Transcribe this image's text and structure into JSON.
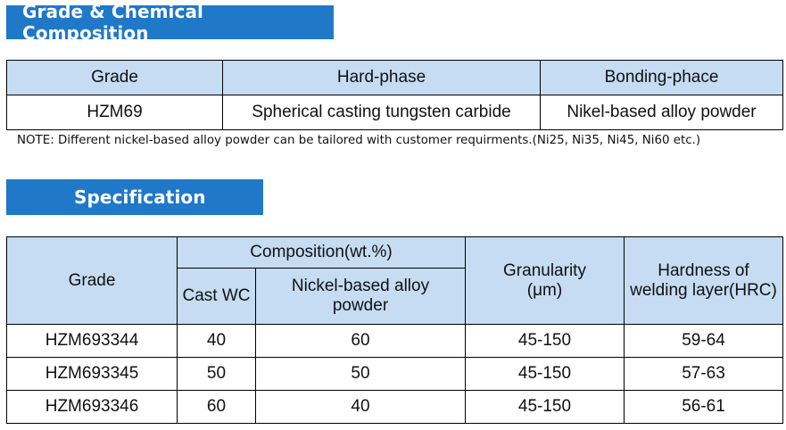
{
  "section1": {
    "banner": "Grade & Chemical Composition",
    "headers": [
      "Grade",
      "Hard-phase",
      "Bonding-phace"
    ],
    "row": [
      "HZM69",
      "Spherical casting tungsten carbide",
      "Nikel-based alloy powder"
    ],
    "note": "NOTE: Different nickel-based alloy powder can be tailored with customer requirments.(Ni25, Ni35, Ni45, Ni60 etc.)"
  },
  "section2": {
    "banner": "Specification",
    "headers": {
      "grade": "Grade",
      "composition": "Composition(wt.%)",
      "cast_wc": "Cast WC",
      "nickel_line1": "Nickel-based alloy",
      "nickel_line2": "powder",
      "granularity_line1": "Granularity",
      "granularity_line2": "(μm)",
      "hardness_line1": "Hardness of",
      "hardness_line2": "welding layer(HRC)"
    },
    "rows": [
      [
        "HZM693344",
        "40",
        "60",
        "45-150",
        "59-64"
      ],
      [
        "HZM693345",
        "50",
        "50",
        "45-150",
        "57-63"
      ],
      [
        "HZM693346",
        "60",
        "40",
        "45-150",
        "56-61"
      ]
    ]
  },
  "colors": {
    "banner": "#1f78c8",
    "header_fill": "#c5dcf2"
  }
}
